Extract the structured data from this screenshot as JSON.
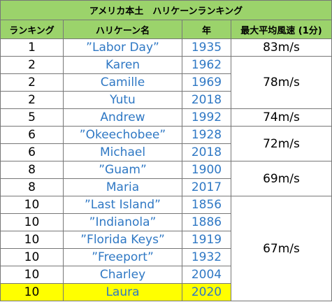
{
  "table": {
    "title": "アメリカ本土　ハリケーンランキング",
    "headers": [
      "ランキング",
      "ハリケーン名",
      "年",
      "最大平均風速 (1分)"
    ],
    "rows": [
      [
        "1",
        "”Labor Day”",
        "1935",
        "83m/s"
      ],
      [
        "2",
        "Karen",
        "1962",
        "78m/s"
      ],
      [
        "2",
        "Camille",
        "1969",
        null
      ],
      [
        "2",
        "Yutu",
        "2018",
        null
      ],
      [
        "5",
        "Andrew",
        "1992",
        "74m/s"
      ],
      [
        "6",
        "”Okeechobee”",
        "1928",
        "72m/s"
      ],
      [
        "6",
        "Michael",
        "2018",
        null
      ],
      [
        "8",
        "”Guam”",
        "1900",
        "69m/s"
      ],
      [
        "8",
        "Maria",
        "2017",
        null
      ],
      [
        "10",
        "”Last Island”",
        "1856",
        "67m/s"
      ],
      [
        "10",
        "”Indianola”",
        "1886",
        null
      ],
      [
        "10",
        "”Florida Keys”",
        "1919",
        null
      ],
      [
        "10",
        "”Freeport”",
        "1932",
        null
      ],
      [
        "10",
        "Charley",
        "2004",
        null
      ],
      [
        "10",
        "Laura",
        "2020",
        null
      ]
    ]
  }
}
